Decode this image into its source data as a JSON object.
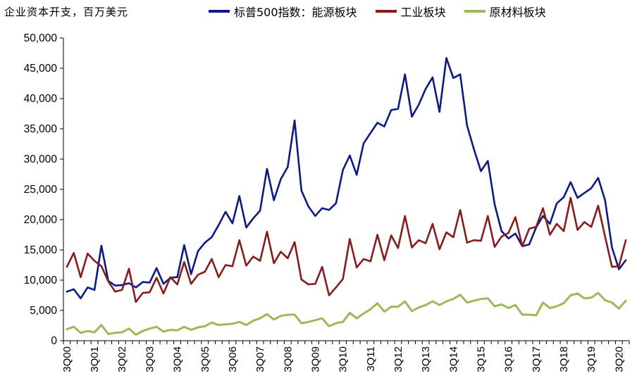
{
  "chart_data": {
    "type": "line",
    "ylabel": "企业资本开支，百万美元",
    "ylim": [
      0,
      50000
    ],
    "yticks": [
      "0",
      "5,000",
      "10,000",
      "15,000",
      "20,000",
      "25,000",
      "30,000",
      "35,000",
      "40,000",
      "45,000",
      "50,000"
    ],
    "xtick_labels": [
      "3Q00",
      "3Q01",
      "3Q02",
      "3Q03",
      "3Q04",
      "3Q05",
      "3Q06",
      "3Q07",
      "3Q08",
      "3Q09",
      "3Q10",
      "3Q11",
      "3Q12",
      "3Q13",
      "3Q14",
      "3Q15",
      "3Q16",
      "3Q17",
      "3Q18",
      "3Q19",
      "3Q20"
    ],
    "legend_position": "top",
    "grid": false,
    "series": [
      {
        "name": "标普500指数：能源板块",
        "color": "#0a1a8c",
        "values": [
          8100,
          8500,
          7000,
          8800,
          8400,
          15700,
          9900,
          9100,
          9200,
          9500,
          8800,
          9700,
          9600,
          12000,
          9400,
          10400,
          10500,
          15800,
          11000,
          14800,
          16200,
          17100,
          19100,
          21300,
          19400,
          23900,
          18700,
          20200,
          21500,
          28400,
          23200,
          26700,
          28700,
          36400,
          24800,
          22200,
          20600,
          21900,
          21600,
          22700,
          28200,
          30600,
          27400,
          32600,
          34300,
          36000,
          35400,
          38100,
          38300,
          44000,
          37000,
          39000,
          41600,
          43500,
          37800,
          46700,
          43400,
          44000,
          35500,
          31600,
          28000,
          29700,
          22500,
          18100,
          16900,
          17700,
          15600,
          15900,
          18700,
          20600,
          19300,
          22700,
          23700,
          26200,
          23600,
          24400,
          25200,
          26900,
          23200,
          15400,
          11800,
          13300
        ]
      },
      {
        "name": "工业板块",
        "color": "#8b1a1a",
        "values": [
          12200,
          14500,
          10500,
          14400,
          13200,
          12300,
          9800,
          8100,
          8400,
          11900,
          6400,
          7900,
          8000,
          10400,
          7800,
          10500,
          9300,
          13000,
          9400,
          10900,
          11400,
          13500,
          10500,
          12500,
          12300,
          16600,
          12400,
          13900,
          13200,
          18000,
          12800,
          14700,
          13600,
          16300,
          10100,
          9300,
          9400,
          12200,
          7500,
          8800,
          10200,
          16800,
          12100,
          13500,
          13100,
          17500,
          13300,
          17400,
          15300,
          20600,
          15400,
          16600,
          16100,
          19300,
          15100,
          17900,
          17100,
          21600,
          16200,
          16600,
          16500,
          20600,
          15500,
          17200,
          17800,
          20400,
          15600,
          18500,
          18800,
          21900,
          17500,
          19300,
          18100,
          23600,
          18300,
          19600,
          18800,
          22300,
          17200,
          12200,
          12300,
          16600
        ]
      },
      {
        "name": "原材料板块",
        "color": "#9bbb59",
        "values": [
          1900,
          2300,
          1300,
          1600,
          1400,
          2600,
          1100,
          1300,
          1400,
          2000,
          1000,
          1600,
          2000,
          2300,
          1500,
          1800,
          1700,
          2300,
          1800,
          2200,
          2400,
          3000,
          2600,
          2700,
          2800,
          3100,
          2600,
          3300,
          3700,
          4400,
          3500,
          4100,
          4300,
          4300,
          2900,
          3100,
          3400,
          3700,
          2400,
          2900,
          3100,
          4600,
          3700,
          4500,
          5200,
          6200,
          4800,
          5600,
          5600,
          6500,
          4900,
          5500,
          5900,
          6500,
          5900,
          6500,
          6900,
          7600,
          6300,
          6600,
          6900,
          7000,
          5700,
          6000,
          5400,
          5900,
          4300,
          4300,
          4200,
          6300,
          5400,
          5700,
          6200,
          7500,
          7800,
          7000,
          7100,
          7900,
          6700,
          6300,
          5300,
          6600
        ]
      }
    ]
  }
}
